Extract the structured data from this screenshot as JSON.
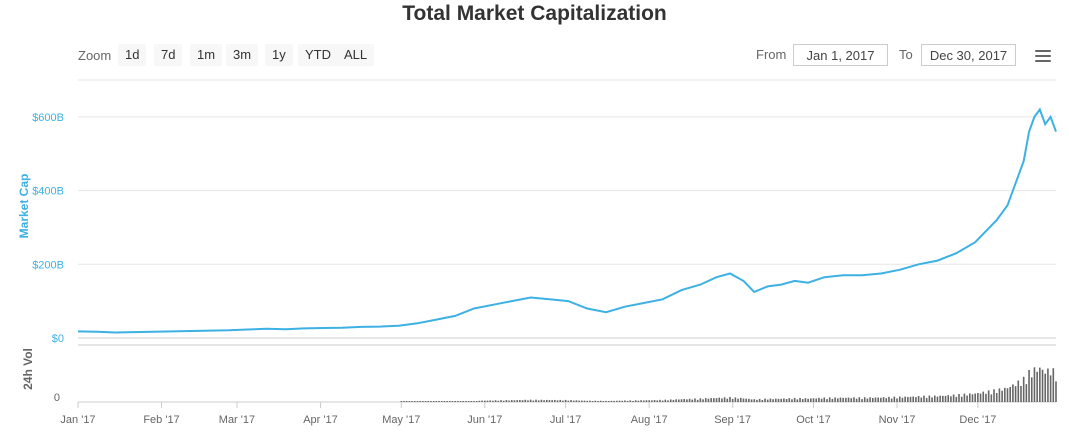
{
  "title": "Total Market Capitalization",
  "zoom": {
    "label": "Zoom",
    "buttons": [
      "1d",
      "7d",
      "1m",
      "3m",
      "1y",
      "YTD",
      "ALL"
    ]
  },
  "range": {
    "from_label": "From",
    "from_value": "Jan 1, 2017",
    "to_label": "To",
    "to_value": "Dec 30, 2017"
  },
  "colors": {
    "line": "#3db0e4",
    "volume": "#666666",
    "grid": "#e6e6e6",
    "axis_text": "#666666",
    "accent": "#3db0e4"
  },
  "chart_data": {
    "type": "line",
    "title": "Total Market Capitalization",
    "ylabel": "Market Cap",
    "ylim": [
      0,
      700
    ],
    "yticks": [
      "$0",
      "$200B",
      "$400B",
      "$600B"
    ],
    "ytick_values": [
      0,
      200,
      400,
      600
    ],
    "xticks": [
      "Jan '17",
      "Feb '17",
      "Mar '17",
      "Apr '17",
      "May '17",
      "Jun '17",
      "Jul '17",
      "Aug '17",
      "Sep '17",
      "Oct '17",
      "Nov '17",
      "Dec '17"
    ],
    "xtick_days": [
      1,
      32,
      60,
      91,
      121,
      152,
      182,
      213,
      244,
      274,
      305,
      335
    ],
    "x_range_days": [
      1,
      364
    ],
    "grid": true,
    "series": [
      {
        "x": [
          1,
          8,
          15,
          22,
          29,
          36,
          43,
          50,
          57,
          64,
          71,
          78,
          85,
          92,
          99,
          106,
          113,
          120,
          127,
          134,
          141,
          148,
          155,
          162,
          169,
          176,
          183,
          190,
          197,
          204,
          211,
          218,
          225,
          232,
          238,
          243,
          248,
          252,
          257,
          262,
          267,
          272,
          278,
          285,
          292,
          299,
          306,
          313,
          320,
          327,
          334,
          338,
          342,
          346,
          349,
          352,
          354,
          356,
          358,
          360,
          362,
          364
        ],
        "values": [
          18,
          17,
          15,
          16,
          17,
          18,
          19,
          20,
          21,
          23,
          25,
          24,
          26,
          27,
          28,
          30,
          31,
          33,
          40,
          50,
          60,
          80,
          90,
          100,
          110,
          105,
          100,
          80,
          70,
          85,
          95,
          105,
          130,
          145,
          165,
          175,
          155,
          125,
          140,
          145,
          155,
          150,
          165,
          170,
          170,
          175,
          185,
          200,
          210,
          230,
          260,
          290,
          320,
          360,
          420,
          480,
          560,
          600,
          620,
          580,
          600,
          560
        ]
      }
    ],
    "volume_series": {
      "label": "24h Vol",
      "ytick": "0"
    }
  }
}
